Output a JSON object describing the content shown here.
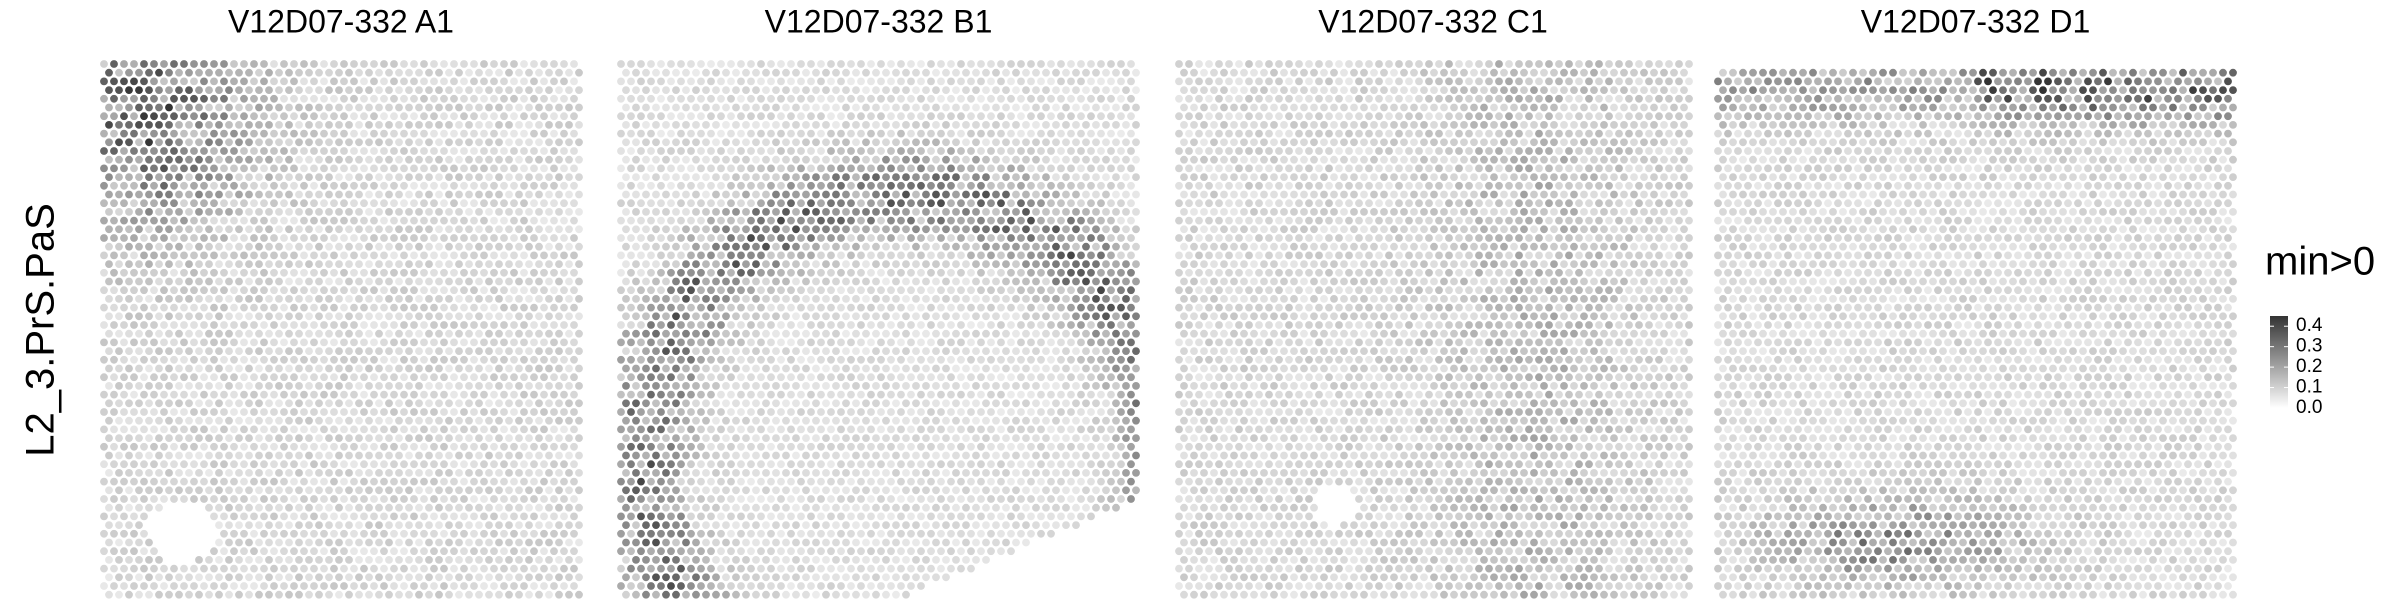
{
  "panels": [
    {
      "title": "V12D07-332  A1"
    },
    {
      "title": "V12D07-332  B1"
    },
    {
      "title": "V12D07-332  C1"
    },
    {
      "title": "V12D07-332  D1"
    }
  ],
  "row_label": "L2_3.PrS.PaS",
  "legend": {
    "title": "min>0",
    "lim": [
      0,
      0.45
    ],
    "ticks": [
      {
        "value": 0,
        "label": "0.0"
      },
      {
        "value": 0.1,
        "label": "0.1"
      },
      {
        "value": 0.2,
        "label": "0.2"
      },
      {
        "value": 0.3,
        "label": "0.3"
      },
      {
        "value": 0.4,
        "label": "0.4"
      }
    ]
  }
}
